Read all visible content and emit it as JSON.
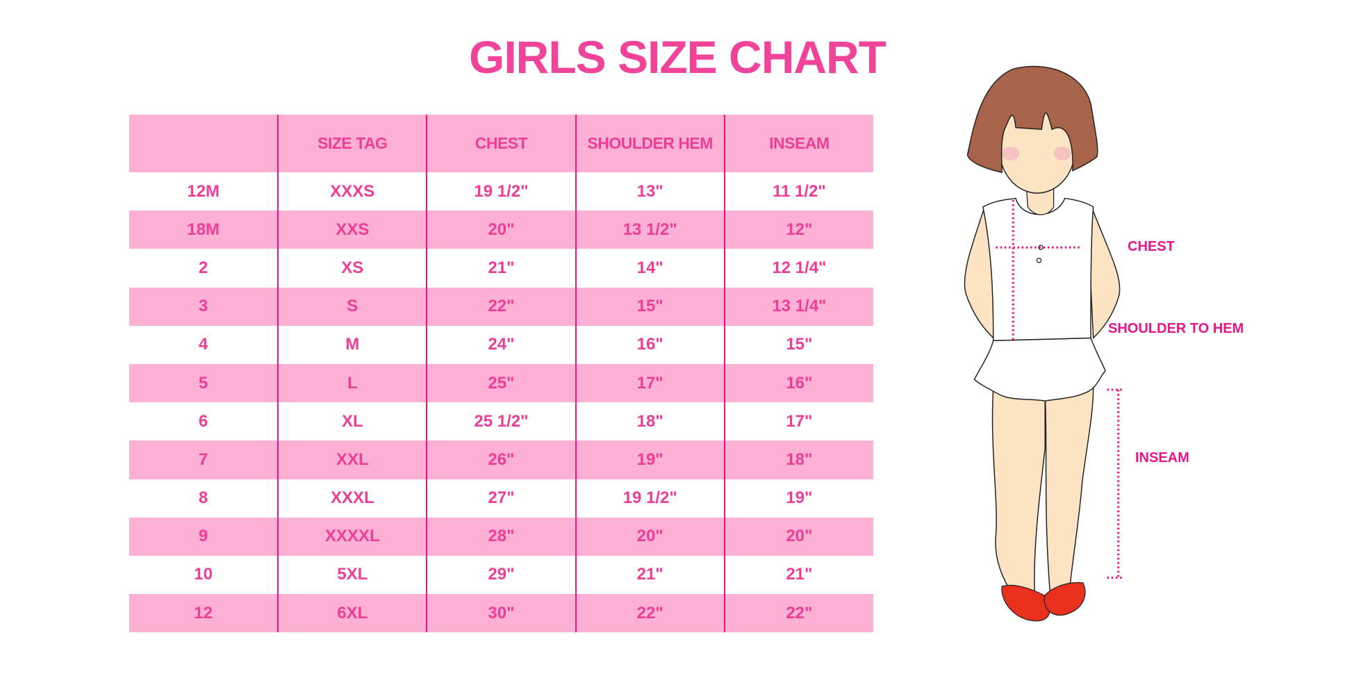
{
  "title": "GIRLS SIZE CHART",
  "table": {
    "headers": [
      "",
      "SIZE TAG",
      "CHEST",
      "SHOULDER HEM",
      "INSEAM"
    ],
    "rows": [
      [
        "12M",
        "XXXS",
        "19 1/2\"",
        "13\"",
        "11 1/2\""
      ],
      [
        "18M",
        "XXS",
        "20\"",
        "13 1/2\"",
        "12\""
      ],
      [
        "2",
        "XS",
        "21\"",
        "14\"",
        "12 1/4\""
      ],
      [
        "3",
        "S",
        "22\"",
        "15\"",
        "13 1/4\""
      ],
      [
        "4",
        "M",
        "24\"",
        "16\"",
        "15\""
      ],
      [
        "5",
        "L",
        "25\"",
        "17\"",
        "16\""
      ],
      [
        "6",
        "XL",
        "25 1/2\"",
        "18\"",
        "17\""
      ],
      [
        "7",
        "XXL",
        "26\"",
        "19\"",
        "18\""
      ],
      [
        "8",
        "XXXL",
        "27\"",
        "19 1/2\"",
        "19\""
      ],
      [
        "9",
        "XXXXL",
        "28\"",
        "20\"",
        "20\""
      ],
      [
        "10",
        "5XL",
        "29\"",
        "21\"",
        "21\""
      ],
      [
        "12",
        "6XL",
        "30\"",
        "22\"",
        "22\""
      ]
    ]
  },
  "figure": {
    "labels": {
      "chest": "CHEST",
      "shoulder_to_hem": "SHOULDER TO HEM",
      "inseam": "INSEAM"
    }
  },
  "colors": {
    "accent": "#ee3d96",
    "stripe": "#fbb0d4",
    "divider": "#e8158a"
  }
}
